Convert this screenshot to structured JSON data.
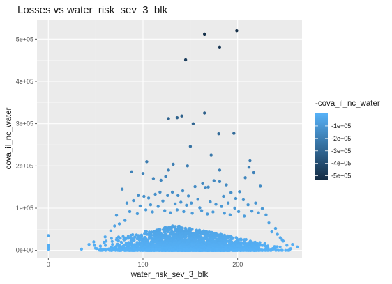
{
  "chart_data": {
    "type": "scatter",
    "title": "Losses vs water_risk_sev_3_blk",
    "xlabel": "water_risk_sev_3_blk",
    "ylabel": "cova_il_nc_water",
    "x_ticks": [
      "0",
      "100",
      "200"
    ],
    "y_ticks": [
      "0e+00",
      "1e+05",
      "2e+05",
      "3e+05",
      "4e+05",
      "5e+05"
    ],
    "xlim": [
      -12,
      268
    ],
    "ylim": [
      -17000,
      545000
    ],
    "color_by": "-cova_il_nc_water",
    "panel_background": "#ebebeb",
    "grid": true,
    "legend": {
      "title": "-cova_il_nc_water",
      "position": "right",
      "labels": [
        "-1e+05",
        "-2e+05",
        "-3e+05",
        "-4e+05",
        "-5e+05"
      ],
      "low_color": "#132b43",
      "high_color": "#56b1f7"
    },
    "points": [
      [
        0,
        35000
      ],
      [
        0,
        12000
      ],
      [
        0,
        3000
      ],
      [
        0,
        8000
      ],
      [
        199,
        520000
      ],
      [
        165,
        512000
      ],
      [
        181,
        481000
      ],
      [
        145,
        451000
      ],
      [
        165,
        325000
      ],
      [
        141,
        318000
      ],
      [
        127,
        312000
      ],
      [
        136,
        314000
      ],
      [
        153,
        300000
      ],
      [
        180,
        276000
      ],
      [
        196,
        277000
      ],
      [
        172,
        226000
      ],
      [
        150,
        246000
      ],
      [
        104,
        210000
      ],
      [
        213,
        212000
      ],
      [
        100,
        182000
      ],
      [
        88,
        186000
      ],
      [
        127,
        190000
      ],
      [
        132,
        204000
      ],
      [
        147,
        200000
      ],
      [
        181,
        190000
      ],
      [
        212,
        197000
      ],
      [
        119,
        166000
      ],
      [
        111,
        170000
      ],
      [
        124,
        175000
      ],
      [
        155,
        151000
      ],
      [
        163,
        158000
      ],
      [
        166,
        149000
      ],
      [
        169,
        150000
      ],
      [
        175,
        165000
      ],
      [
        181,
        163000
      ],
      [
        188,
        155000
      ],
      [
        208,
        172000
      ],
      [
        217,
        184000
      ],
      [
        224,
        152000
      ],
      [
        78,
        145000
      ],
      [
        95,
        130000
      ],
      [
        101,
        128000
      ],
      [
        106,
        124000
      ],
      [
        113,
        133000
      ],
      [
        118,
        138000
      ],
      [
        126,
        130000
      ],
      [
        131,
        138000
      ],
      [
        137,
        130000
      ],
      [
        142,
        141000
      ],
      [
        148,
        129000
      ],
      [
        158,
        121000
      ],
      [
        185,
        128000
      ],
      [
        193,
        137000
      ],
      [
        202,
        139000
      ],
      [
        206,
        120000
      ],
      [
        198,
        123000
      ],
      [
        83,
        112000
      ],
      [
        90,
        118000
      ],
      [
        97,
        105000
      ],
      [
        108,
        108000
      ],
      [
        116,
        104000
      ],
      [
        121,
        117000
      ],
      [
        134,
        110000
      ],
      [
        140,
        114000
      ],
      [
        146,
        107000
      ],
      [
        151,
        112000
      ],
      [
        160,
        101000
      ],
      [
        171,
        115000
      ],
      [
        177,
        109000
      ],
      [
        183,
        104000
      ],
      [
        190,
        112000
      ],
      [
        197,
        100000
      ],
      [
        211,
        108000
      ],
      [
        215,
        93000
      ],
      [
        219,
        112000
      ],
      [
        226,
        99000
      ],
      [
        230,
        84000
      ],
      [
        86,
        92000
      ],
      [
        94,
        87000
      ],
      [
        103,
        96000
      ],
      [
        110,
        91000
      ],
      [
        123,
        94000
      ],
      [
        129,
        89000
      ],
      [
        136,
        96000
      ],
      [
        143,
        92000
      ],
      [
        152,
        88000
      ],
      [
        162,
        94000
      ],
      [
        168,
        86000
      ],
      [
        174,
        91000
      ],
      [
        186,
        88000
      ],
      [
        192,
        84000
      ],
      [
        201,
        92000
      ],
      [
        207,
        81000
      ],
      [
        222,
        89000
      ],
      [
        72,
        83000
      ],
      [
        233,
        65000
      ],
      [
        240,
        52000
      ],
      [
        236,
        44000
      ],
      [
        245,
        30000
      ],
      [
        248,
        22000
      ],
      [
        252,
        12000
      ],
      [
        258,
        14000
      ],
      [
        242,
        38000
      ],
      [
        247,
        25000
      ],
      [
        263,
        8000
      ],
      [
        256,
        4000
      ],
      [
        35,
        3000
      ],
      [
        43,
        14000
      ],
      [
        48,
        20000
      ],
      [
        55,
        10000
      ],
      [
        60,
        32000
      ],
      [
        66,
        46000
      ],
      [
        70,
        58000
      ],
      [
        75,
        63000
      ],
      [
        81,
        71000
      ]
    ]
  }
}
